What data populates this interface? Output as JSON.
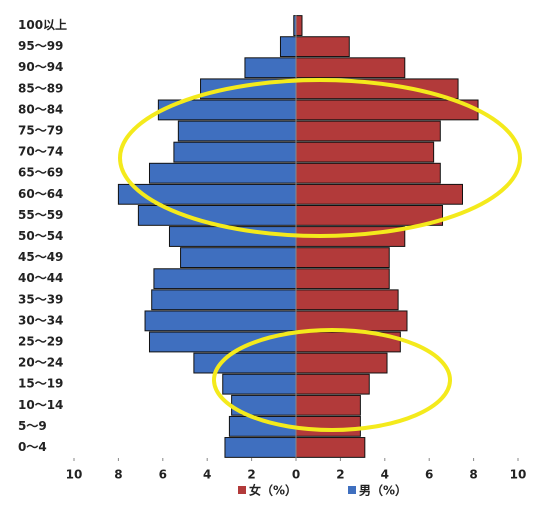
{
  "chart_data": {
    "type": "pyramid",
    "categories": [
      "100以上",
      "95～99",
      "90～94",
      "85～89",
      "80～84",
      "75～79",
      "70～74",
      "65～69",
      "60～64",
      "55～59",
      "50～54",
      "45～49",
      "40～44",
      "35～39",
      "30～34",
      "25～29",
      "20～24",
      "15～19",
      "10～14",
      "5～9",
      "0～4"
    ],
    "series": [
      {
        "name": "女（%）",
        "color": "#b23a3a",
        "values": [
          0.27,
          2.4,
          4.9,
          7.3,
          8.2,
          6.5,
          6.2,
          6.5,
          7.5,
          6.6,
          4.9,
          4.2,
          4.2,
          4.6,
          5.0,
          4.7,
          4.1,
          3.3,
          2.9,
          2.9,
          3.1
        ]
      },
      {
        "name": "男（%）",
        "color": "#3f6fbf",
        "values": [
          -0.1,
          -0.7,
          -2.3,
          -4.3,
          -6.2,
          -5.3,
          -5.5,
          -6.6,
          -8.0,
          -7.1,
          -5.7,
          -5.2,
          -6.4,
          -6.5,
          -6.8,
          -6.6,
          -4.6,
          -3.3,
          -2.9,
          -3.0,
          -3.2
        ]
      }
    ],
    "xlim": [
      -10,
      10
    ],
    "xticks": [
      {
        "value": -10,
        "label": "10"
      },
      {
        "value": -8,
        "label": "8"
      },
      {
        "value": -6,
        "label": "6"
      },
      {
        "value": -4,
        "label": "4"
      },
      {
        "value": -2,
        "label": "2"
      },
      0,
      2,
      4,
      6,
      8,
      10
    ]
  }
}
